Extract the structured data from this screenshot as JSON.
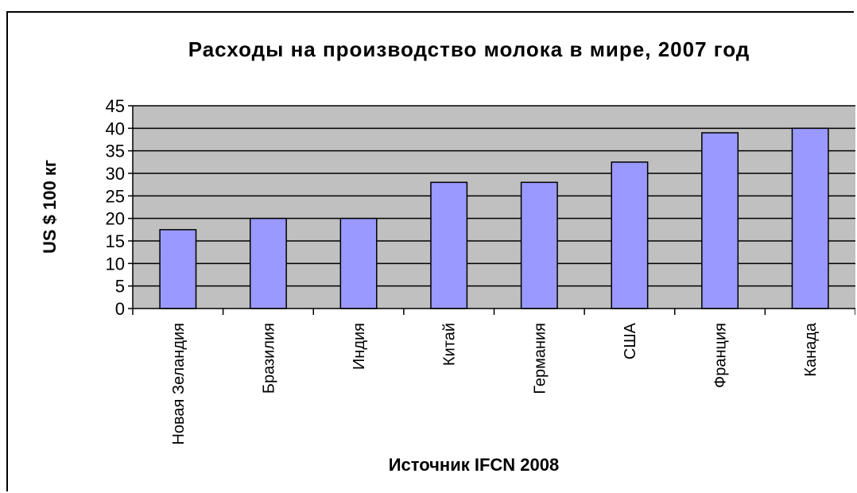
{
  "chart_data": {
    "type": "bar",
    "title": "Расходы на производство молока в мире, 2007 год",
    "xlabel": "Источник IFCN 2008",
    "ylabel": "US $ 100 кг",
    "categories": [
      "Новая Зеландия",
      "Бразилия",
      "Индия",
      "Китай",
      "Германия",
      "США",
      "Франция",
      "Канада"
    ],
    "values": [
      17.5,
      20,
      20,
      28,
      28,
      32.5,
      39,
      40
    ],
    "ylim": [
      0,
      45
    ],
    "yticks": [
      0,
      5,
      10,
      15,
      20,
      25,
      30,
      35,
      40,
      45
    ],
    "grid": true,
    "legend": "none",
    "colors": {
      "bar_fill": "#9999ff",
      "bar_stroke": "#000000",
      "plot_background": "#c0c0c0",
      "gridline": "#000000"
    }
  }
}
